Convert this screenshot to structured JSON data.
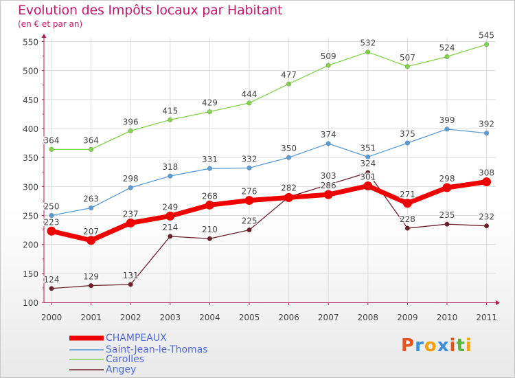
{
  "title": "Evolution des Impôts locaux par Habitant",
  "subtitle": "(en € et par an)",
  "logo": {
    "text": "Proxiti",
    "letters": [
      "P",
      "r",
      "o",
      "x",
      "i",
      "t",
      "i"
    ],
    "colors": [
      "#e8541f",
      "#3d8fd6",
      "#f2a10f",
      "#3d8fd6",
      "#e8541f",
      "#5ab43c",
      "#f2a10f"
    ]
  },
  "colors": {
    "title": "#c3196f",
    "axis": "#b01a54",
    "legend_text": "#4f6ad8"
  },
  "chart_data": {
    "type": "line",
    "x": [
      "2000",
      "2001",
      "2002",
      "2003",
      "2004",
      "2005",
      "2006",
      "2007",
      "2008",
      "2009",
      "2010",
      "2011"
    ],
    "y_ticks": [
      "100",
      "150",
      "200",
      "250",
      "300",
      "350",
      "400",
      "450",
      "500",
      "550"
    ],
    "ylim": [
      100,
      560
    ],
    "grid": true,
    "legend_position": "bottom-left",
    "series": [
      {
        "name": "CHAMPEAUX",
        "color": "#ee0000",
        "thick": true,
        "values": [
          223,
          207,
          237,
          249,
          268,
          276,
          281,
          286,
          301,
          271,
          298,
          308
        ]
      },
      {
        "name": "Saint-Jean-le-Thomas",
        "color": "#5a9bd8",
        "thick": false,
        "values": [
          250,
          263,
          298,
          318,
          331,
          332,
          350,
          374,
          351,
          375,
          399,
          392
        ]
      },
      {
        "name": "Carolles",
        "color": "#84d24c",
        "thick": false,
        "values": [
          364,
          364,
          396,
          415,
          429,
          444,
          477,
          509,
          532,
          507,
          524,
          545
        ]
      },
      {
        "name": "Angey",
        "color": "#6b1f2a",
        "thick": false,
        "values": [
          124,
          129,
          131,
          214,
          210,
          225,
          282,
          303,
          324,
          228,
          235,
          232
        ]
      }
    ]
  }
}
